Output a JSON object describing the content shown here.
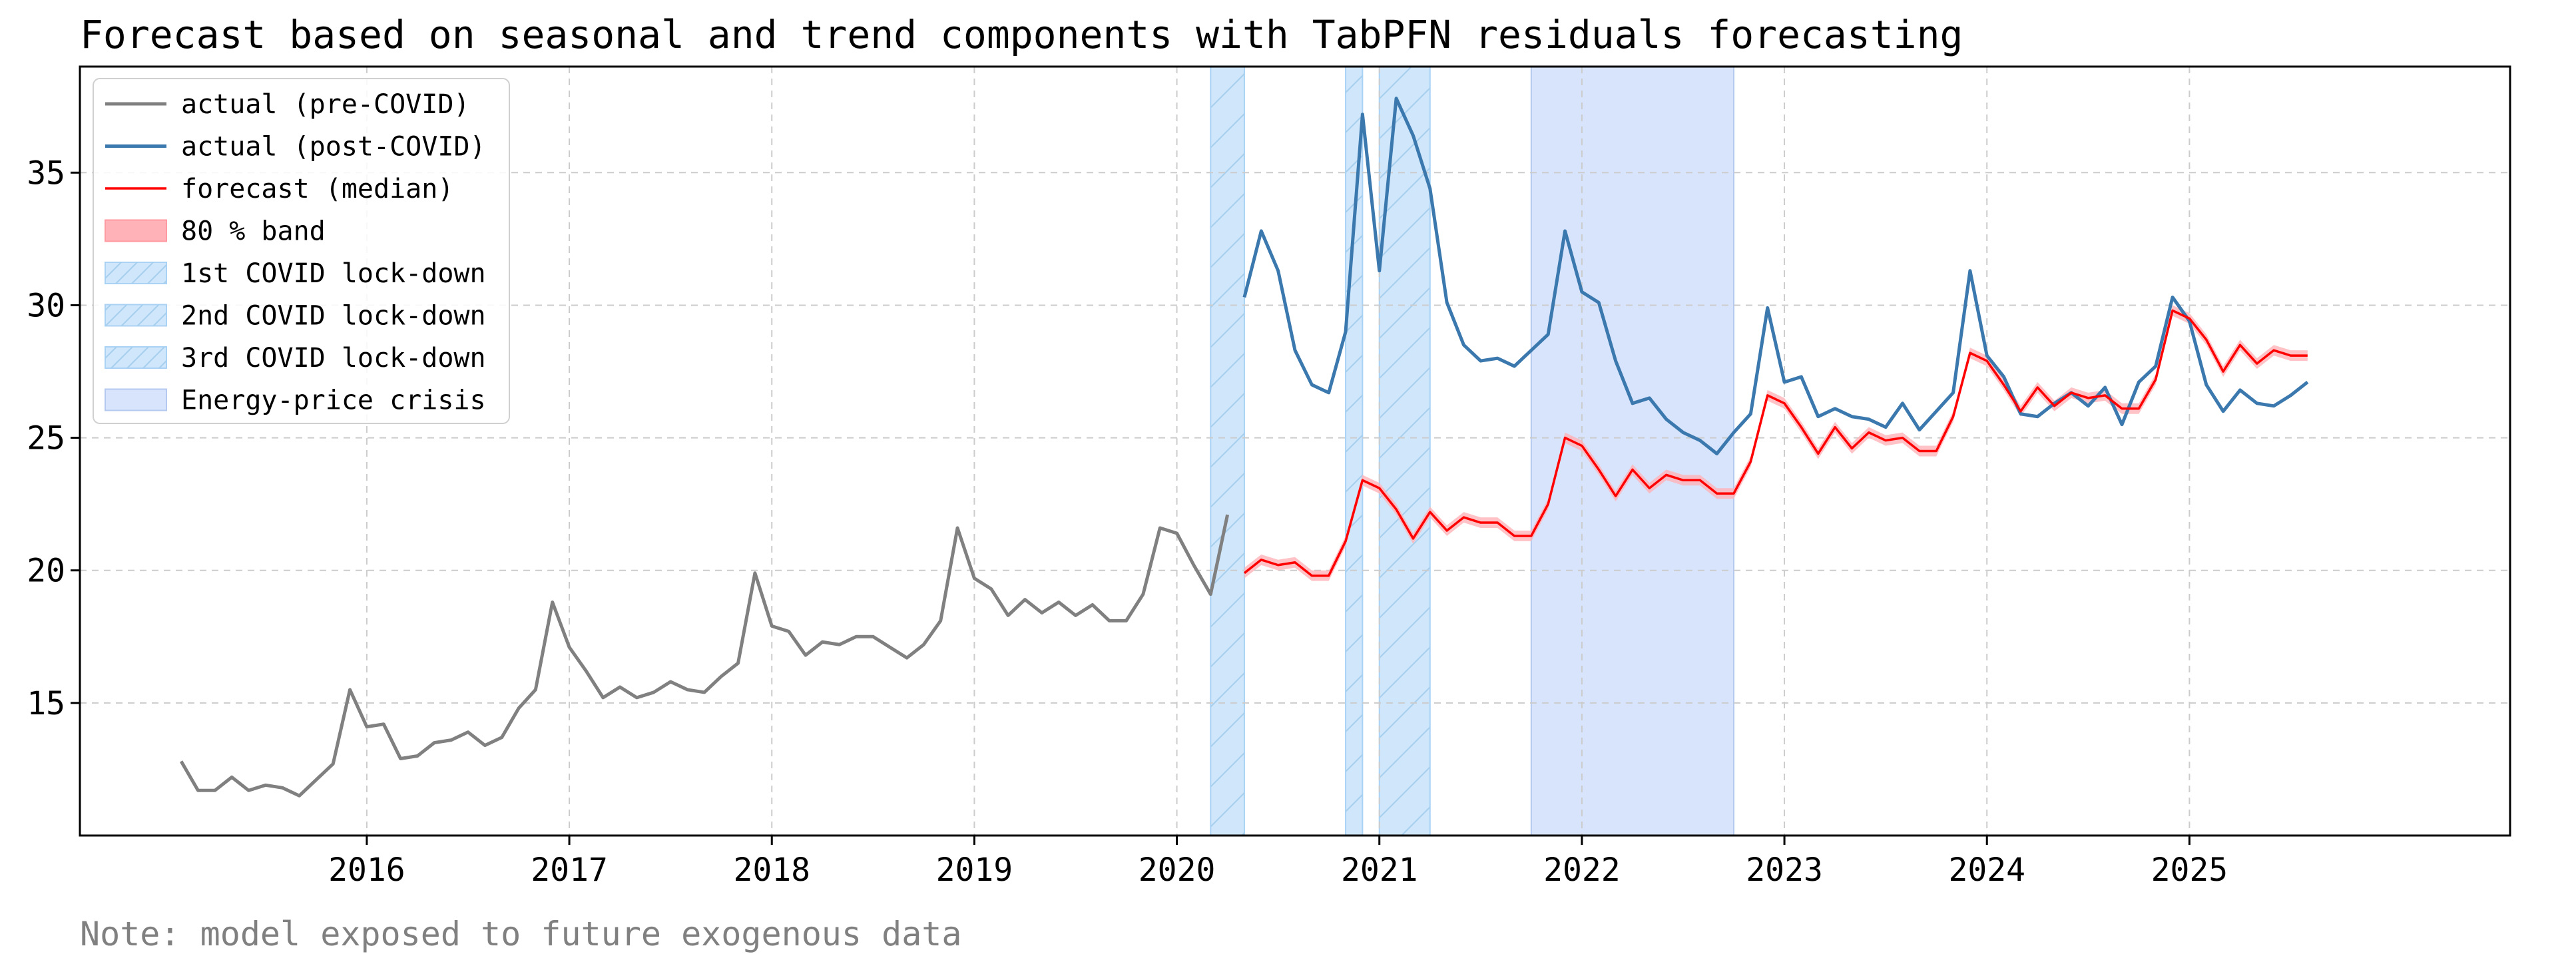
{
  "chart_data": {
    "type": "line",
    "title": "Forecast based on seasonal and trend components with TabPFN residuals forecasting",
    "note": "Note: model exposed to future exogenous data",
    "xlabel": "",
    "ylabel": "",
    "xlim": [
      "2014-08-01",
      "2026-08-01"
    ],
    "ylim": [
      10,
      39
    ],
    "x_ticks": [
      "2016",
      "2017",
      "2018",
      "2019",
      "2020",
      "2021",
      "2022",
      "2023",
      "2024",
      "2025"
    ],
    "y_ticks": [
      "15",
      "20",
      "25",
      "30",
      "35"
    ],
    "grid": true,
    "legend_position": "top-left",
    "colors": {
      "pre": "#808080",
      "post": "#3a78ae",
      "forecast": "#ff0000",
      "band": "#ffb3b8",
      "lockdown_fill": "#cfe6fb",
      "lockdown_edge": "#a9d2f5",
      "lockdown_hatch": "#a6cfee",
      "crisis_fill": "#d8e4fc",
      "crisis_edge": "#b5c9f0",
      "grid": "#cccccc"
    },
    "shaded_regions": [
      {
        "name": "1st COVID lock-down",
        "start": "2020-03-01",
        "end": "2020-05-01",
        "style": "lockdown"
      },
      {
        "name": "2nd COVID lock-down",
        "start": "2020-11-01",
        "end": "2020-12-01",
        "style": "lockdown"
      },
      {
        "name": "3rd COVID lock-down",
        "start": "2021-01-01",
        "end": "2021-04-01",
        "style": "lockdown"
      },
      {
        "name": "Energy-price crisis",
        "start": "2021-10-01",
        "end": "2022-10-01",
        "style": "crisis"
      }
    ],
    "series": [
      {
        "name": "actual (pre-COVID)",
        "x": [
          "2015-02",
          "2015-03",
          "2015-04",
          "2015-05",
          "2015-06",
          "2015-07",
          "2015-08",
          "2015-09",
          "2015-10",
          "2015-11",
          "2015-12",
          "2016-01",
          "2016-02",
          "2016-03",
          "2016-04",
          "2016-05",
          "2016-06",
          "2016-07",
          "2016-08",
          "2016-09",
          "2016-10",
          "2016-11",
          "2016-12",
          "2017-01",
          "2017-02",
          "2017-03",
          "2017-04",
          "2017-05",
          "2017-06",
          "2017-07",
          "2017-08",
          "2017-09",
          "2017-10",
          "2017-11",
          "2017-12",
          "2018-01",
          "2018-02",
          "2018-03",
          "2018-04",
          "2018-05",
          "2018-06",
          "2018-07",
          "2018-08",
          "2018-09",
          "2018-10",
          "2018-11",
          "2018-12",
          "2019-01",
          "2019-02",
          "2019-03",
          "2019-04",
          "2019-05",
          "2019-06",
          "2019-07",
          "2019-08",
          "2019-09",
          "2019-10",
          "2019-11",
          "2019-12",
          "2020-01",
          "2020-02",
          "2020-03",
          "2020-04"
        ],
        "values": [
          12.8,
          11.7,
          11.7,
          12.2,
          11.7,
          11.9,
          11.8,
          11.5,
          12.1,
          12.7,
          15.5,
          14.1,
          14.2,
          12.9,
          13.0,
          13.5,
          13.6,
          13.9,
          13.4,
          13.7,
          14.8,
          15.5,
          18.8,
          17.1,
          16.2,
          15.2,
          15.6,
          15.2,
          15.4,
          15.8,
          15.5,
          15.4,
          16.0,
          16.5,
          19.9,
          17.9,
          17.7,
          16.8,
          17.3,
          17.2,
          17.5,
          17.5,
          17.1,
          16.7,
          17.2,
          18.1,
          21.6,
          19.7,
          19.3,
          18.3,
          18.9,
          18.4,
          18.8,
          18.3,
          18.7,
          18.1,
          18.1,
          19.1,
          21.6,
          21.4,
          20.2,
          19.1,
          22.1
        ]
      },
      {
        "name": "actual (post-COVID)",
        "x": [
          "2020-05",
          "2020-06",
          "2020-07",
          "2020-08",
          "2020-09",
          "2020-10",
          "2020-11",
          "2020-12",
          "2021-01",
          "2021-02",
          "2021-03",
          "2021-04",
          "2021-05",
          "2021-06",
          "2021-07",
          "2021-08",
          "2021-09",
          "2021-10",
          "2021-11",
          "2021-12",
          "2022-01",
          "2022-02",
          "2022-03",
          "2022-04",
          "2022-05",
          "2022-06",
          "2022-07",
          "2022-08",
          "2022-09",
          "2022-10",
          "2022-11",
          "2022-12",
          "2023-01",
          "2023-02",
          "2023-03",
          "2023-04",
          "2023-05",
          "2023-06",
          "2023-07",
          "2023-08",
          "2023-09",
          "2023-10",
          "2023-11",
          "2023-12",
          "2024-01",
          "2024-02",
          "2024-03",
          "2024-04",
          "2024-05",
          "2024-06",
          "2024-07",
          "2024-08",
          "2024-09",
          "2024-10",
          "2024-11",
          "2024-12",
          "2025-01",
          "2025-02",
          "2025-03",
          "2025-04",
          "2025-05",
          "2025-06",
          "2025-07",
          "2025-08"
        ],
        "values": [
          30.3,
          32.8,
          31.3,
          28.3,
          27.0,
          26.7,
          29.0,
          37.2,
          31.3,
          37.8,
          36.4,
          34.4,
          30.1,
          28.5,
          27.9,
          28.0,
          27.7,
          28.3,
          28.9,
          32.8,
          30.5,
          30.1,
          27.9,
          26.3,
          26.5,
          25.7,
          25.2,
          24.9,
          24.4,
          25.2,
          25.9,
          29.9,
          27.1,
          27.3,
          25.8,
          26.1,
          25.8,
          25.7,
          25.4,
          26.3,
          25.3,
          26.0,
          26.7,
          31.3,
          28.1,
          27.3,
          25.9,
          25.8,
          26.3,
          26.7,
          26.2,
          26.9,
          25.5,
          27.1,
          27.7,
          30.3,
          29.4,
          27.0,
          26.0,
          26.8,
          26.3,
          26.2,
          26.6,
          27.1
        ]
      },
      {
        "name": "forecast (median)",
        "x": [
          "2020-05",
          "2020-06",
          "2020-07",
          "2020-08",
          "2020-09",
          "2020-10",
          "2020-11",
          "2020-12",
          "2021-01",
          "2021-02",
          "2021-03",
          "2021-04",
          "2021-05",
          "2021-06",
          "2021-07",
          "2021-08",
          "2021-09",
          "2021-10",
          "2021-11",
          "2021-12",
          "2022-01",
          "2022-02",
          "2022-03",
          "2022-04",
          "2022-05",
          "2022-06",
          "2022-07",
          "2022-08",
          "2022-09",
          "2022-10",
          "2022-11",
          "2022-12",
          "2023-01",
          "2023-02",
          "2023-03",
          "2023-04",
          "2023-05",
          "2023-06",
          "2023-07",
          "2023-08",
          "2023-09",
          "2023-10",
          "2023-11",
          "2023-12",
          "2024-01",
          "2024-02",
          "2024-03",
          "2024-04",
          "2024-05",
          "2024-06",
          "2024-07",
          "2024-08",
          "2024-09",
          "2024-10",
          "2024-11",
          "2024-12",
          "2025-01",
          "2025-02",
          "2025-03",
          "2025-04",
          "2025-05",
          "2025-06",
          "2025-07",
          "2025-08"
        ],
        "values": [
          19.9,
          20.4,
          20.2,
          20.3,
          19.8,
          19.8,
          21.1,
          23.4,
          23.1,
          22.3,
          21.2,
          22.2,
          21.5,
          22.0,
          21.8,
          21.8,
          21.3,
          21.3,
          22.5,
          25.0,
          24.7,
          23.8,
          22.8,
          23.8,
          23.1,
          23.6,
          23.4,
          23.4,
          22.9,
          22.9,
          24.1,
          26.6,
          26.3,
          25.4,
          24.4,
          25.4,
          24.6,
          25.2,
          24.9,
          25.0,
          24.5,
          24.5,
          25.8,
          28.2,
          27.9,
          27.0,
          26.0,
          26.9,
          26.2,
          26.7,
          26.5,
          26.6,
          26.1,
          26.1,
          27.2,
          29.8,
          29.5,
          28.7,
          27.5,
          28.5,
          27.8,
          28.3,
          28.1,
          28.1
        ]
      }
    ],
    "band": {
      "name": "80 % band",
      "half_width": 0.2
    }
  }
}
